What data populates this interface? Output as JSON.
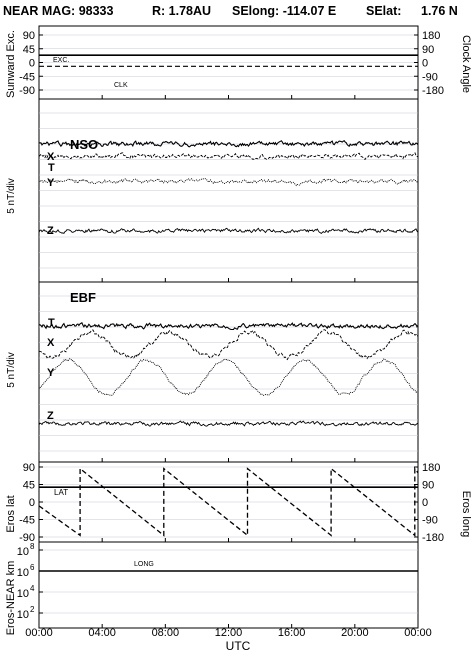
{
  "header": {
    "mission": "NEAR MAG: 98333",
    "range": "R: 1.78AU",
    "selong": "SElong: -114.07 E",
    "selat_label": "SElat:",
    "selat_value": "1.76 N"
  },
  "panels": {
    "sunward": {
      "ylabel_left": "Sunward Exc.",
      "ylabel_right": "Clock Angle",
      "left_ticks": [
        "90",
        "45",
        "0",
        "-45",
        "-90"
      ],
      "right_ticks": [
        "180",
        "90",
        "0",
        "-90",
        "-180"
      ],
      "exc_label": "EXC.",
      "clk_label": "CLK"
    },
    "nso": {
      "title": "NSO",
      "ylabel": "5 nT/div",
      "traces": [
        "T",
        "X",
        "Y",
        "Z"
      ]
    },
    "ebf": {
      "title": "EBF",
      "ylabel": "5 nT/div",
      "traces": [
        "T",
        "X",
        "Y",
        "Z"
      ]
    },
    "eros": {
      "ylabel_left": "Eros lat",
      "ylabel_right": "Eros long",
      "left_ticks": [
        "90",
        "45",
        "0",
        "-45",
        "-90"
      ],
      "right_ticks": [
        "180",
        "90",
        "0",
        "-90",
        "-180"
      ],
      "lat_label": "LAT",
      "long_label": "LONG"
    },
    "distance": {
      "ylabel": "Eros-NEAR km",
      "ticks": [
        "10",
        "10",
        "10",
        "10"
      ],
      "exponents": [
        "8",
        "6",
        "4",
        "2"
      ]
    }
  },
  "x_axis": {
    "label": "UTC",
    "ticks": [
      "00:00",
      "04:00",
      "08:00",
      "12:00",
      "16:00",
      "20:00",
      "00:00"
    ]
  },
  "chart_data": [
    {
      "type": "line",
      "title": "",
      "xlabel": "UTC",
      "ylabel": "Sunward Exc.",
      "ylabel_right": "Clock Angle",
      "xlim_hours": [
        0,
        24
      ],
      "ylim": [
        -90,
        90
      ],
      "ylim_right": [
        -180,
        180
      ],
      "series": [
        {
          "name": "EXC.",
          "axis": "left",
          "x": [
            0,
            24
          ],
          "y": [
            24,
            24
          ]
        },
        {
          "name": "CLK",
          "axis": "right",
          "x": [
            0,
            24
          ],
          "y": [
            -25,
            -25
          ]
        }
      ]
    },
    {
      "type": "line",
      "title": "NSO",
      "ylabel": "5 nT/div",
      "series": [
        {
          "name": "T",
          "level_div": 0.0,
          "noise": 0.6,
          "wave_amp": 0.0
        },
        {
          "name": "X",
          "level_div": -0.8,
          "noise": 0.6,
          "wave_amp": 0.0
        },
        {
          "name": "Y",
          "level_div": -2.4,
          "noise": 0.5,
          "wave_amp": 0.0,
          "dip_at_hour": 16.3
        },
        {
          "name": "Z",
          "level_div": -5.6,
          "noise": 0.5,
          "wave_amp": 0.0
        }
      ]
    },
    {
      "type": "line",
      "title": "EBF",
      "ylabel": "5 nT/div",
      "series": [
        {
          "name": "T",
          "level_div": 0.0,
          "noise": 0.6,
          "wave_amp": 0.0
        },
        {
          "name": "X",
          "level_div": -1.2,
          "noise": 0.6,
          "wave_amp": 1.0,
          "period_hours": 5.0,
          "phase": 0.6
        },
        {
          "name": "Y",
          "level_div": -3.3,
          "noise": 0.4,
          "wave_amp": 1.4,
          "period_hours": 5.0,
          "phase": 2.4
        },
        {
          "name": "Z",
          "level_div": -6.3,
          "noise": 0.5,
          "wave_amp": 0.0
        }
      ]
    },
    {
      "type": "line",
      "title": "",
      "ylabel": "Eros lat",
      "ylabel_right": "Eros long",
      "ylim": [
        -90,
        90
      ],
      "ylim_right": [
        -180,
        180
      ],
      "series": [
        {
          "name": "LAT",
          "axis": "left",
          "x": [
            0,
            24
          ],
          "y": [
            38,
            38
          ]
        },
        {
          "name": "LONG",
          "axis": "right",
          "x": [
            0,
            2.6,
            2.6,
            7.9,
            7.9,
            13.2,
            13.2,
            18.5,
            18.5,
            23.8,
            23.8,
            24
          ],
          "y": [
            -20,
            -172,
            172,
            -172,
            172,
            -172,
            172,
            -172,
            172,
            -172,
            172,
            150
          ]
        }
      ]
    },
    {
      "type": "line",
      "title": "",
      "ylabel": "Eros-NEAR km",
      "yscale": "log",
      "ylim": [
        10,
        100000000
      ],
      "series": [
        {
          "name": "",
          "x": [
            0,
            24
          ],
          "y": [
            1000000,
            1000000
          ]
        }
      ]
    }
  ]
}
